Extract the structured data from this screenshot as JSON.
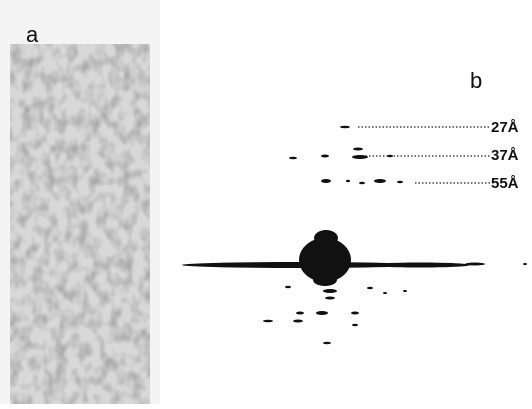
{
  "panels": {
    "a": {
      "label": "a"
    },
    "b": {
      "label": "b",
      "spacings": [
        "27Å",
        "37Å",
        "55Å"
      ]
    }
  }
}
